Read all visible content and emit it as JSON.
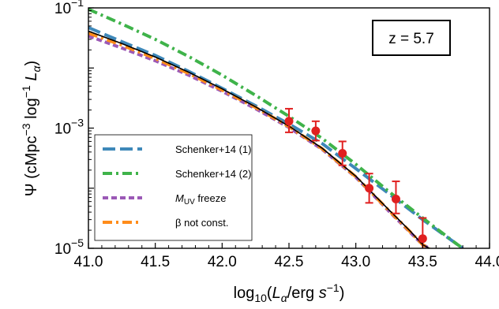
{
  "chart_data": {
    "type": "line",
    "title": "",
    "xlabel": "log10(Lα/erg s^-1)",
    "ylabel": "Ψ (cMpc^-3 log^-1 Lα)",
    "xlim": [
      41.0,
      44.0
    ],
    "ylim": [
      1e-05,
      0.1
    ],
    "yscale": "log",
    "grid": false,
    "legend_position": "lower-left",
    "x_ticks": [
      "41.0",
      "41.5",
      "42.0",
      "42.5",
      "43.0",
      "43.5",
      "44.0"
    ],
    "y_ticks": [
      {
        "value": 0.1,
        "base": "10",
        "exp": "−1"
      },
      {
        "value": 0.001,
        "base": "10",
        "exp": "−3"
      },
      {
        "value": 1e-05,
        "base": "10",
        "exp": "−5"
      }
    ],
    "annotation": "z = 5.7",
    "series": [
      {
        "name": "Schenker+14 (1)",
        "color": "#3e88b9",
        "dash": "long-dash",
        "x": [
          41.0,
          41.25,
          41.5,
          41.75,
          42.0,
          42.25,
          42.5,
          42.75,
          43.0,
          43.25,
          43.5,
          43.75,
          43.8
        ],
        "y": [
          0.047,
          0.0275,
          0.0162,
          0.0088,
          0.0046,
          0.00235,
          0.00117,
          0.00055,
          0.000212,
          8e-05,
          3e-05,
          1.2e-05,
          1e-05
        ]
      },
      {
        "name": "Schenker+14 (2)",
        "color": "#3fb34a",
        "dash": "dash-dot",
        "x": [
          41.0,
          41.25,
          41.5,
          41.75,
          42.0,
          42.25,
          42.5,
          42.75,
          43.0,
          43.25,
          43.5,
          43.75,
          43.8
        ],
        "y": [
          0.095,
          0.054,
          0.03,
          0.0155,
          0.0076,
          0.0035,
          0.00157,
          0.00067,
          0.00025,
          8.7e-05,
          3.2e-05,
          1.2e-05,
          1e-05
        ]
      },
      {
        "name": "M_UV freeze",
        "color": "#9b59b6",
        "dash": "short-dash",
        "x": [
          41.0,
          41.25,
          41.5,
          41.75,
          42.0,
          42.25,
          42.5,
          42.75,
          43.0,
          43.25,
          43.4,
          43.5,
          43.55
        ],
        "y": [
          0.034,
          0.0215,
          0.0132,
          0.0076,
          0.0041,
          0.0021,
          0.00102,
          0.00044,
          0.000152,
          4.1e-05,
          1.9e-05,
          1.15e-05,
          1e-05
        ]
      },
      {
        "name": "β not const.",
        "color": "#ff8c1a",
        "dash": "dash-dot",
        "x": [
          41.0,
          41.25,
          41.5,
          41.75,
          42.0,
          42.25,
          42.5,
          42.75,
          43.0,
          43.25,
          43.4,
          43.5,
          43.55
        ],
        "y": [
          0.038,
          0.024,
          0.0144,
          0.0081,
          0.0043,
          0.0022,
          0.00106,
          0.00045,
          0.000155,
          4.2e-05,
          1.95e-05,
          1.15e-05,
          1e-05
        ]
      },
      {
        "name": "",
        "color": "#000000",
        "dash": "solid",
        "x": [
          41.0,
          41.25,
          41.5,
          41.75,
          42.0,
          42.25,
          42.5,
          42.75,
          43.0,
          43.25,
          43.4,
          43.5,
          43.55
        ],
        "y": [
          0.041,
          0.0255,
          0.0152,
          0.0085,
          0.0045,
          0.00225,
          0.00108,
          0.00046,
          0.000158,
          4.3e-05,
          2e-05,
          1.15e-05,
          1e-05
        ]
      }
    ],
    "data_points": {
      "color": "#e02020",
      "points": [
        {
          "x": 42.5,
          "y": 0.0013,
          "y_low": 0.00085,
          "y_high": 0.0021
        },
        {
          "x": 42.7,
          "y": 0.0009,
          "y_low": 0.00062,
          "y_high": 0.0013
        },
        {
          "x": 42.9,
          "y": 0.00038,
          "y_low": 0.00024,
          "y_high": 0.0006
        },
        {
          "x": 43.1,
          "y": 0.0001,
          "y_low": 5.7e-05,
          "y_high": 0.000175
        },
        {
          "x": 43.3,
          "y": 6.6e-05,
          "y_low": 3.8e-05,
          "y_high": 0.00013
        },
        {
          "x": 43.5,
          "y": 1.45e-05,
          "y_low": 1e-05,
          "y_high": 3.2e-05
        }
      ]
    },
    "legend": [
      {
        "label": "Schenker+14 (1)",
        "color": "#3e88b9",
        "dash": "long-dash"
      },
      {
        "label": "Schenker+14 (2)",
        "color": "#3fb34a",
        "dash": "dash-dot"
      },
      {
        "label_main": "M",
        "label_sub": "UV",
        "label_rest": " freeze",
        "color": "#9b59b6",
        "dash": "short-dash"
      },
      {
        "label": "β not const.",
        "color": "#ff8c1a",
        "dash": "dash-dot"
      }
    ]
  }
}
